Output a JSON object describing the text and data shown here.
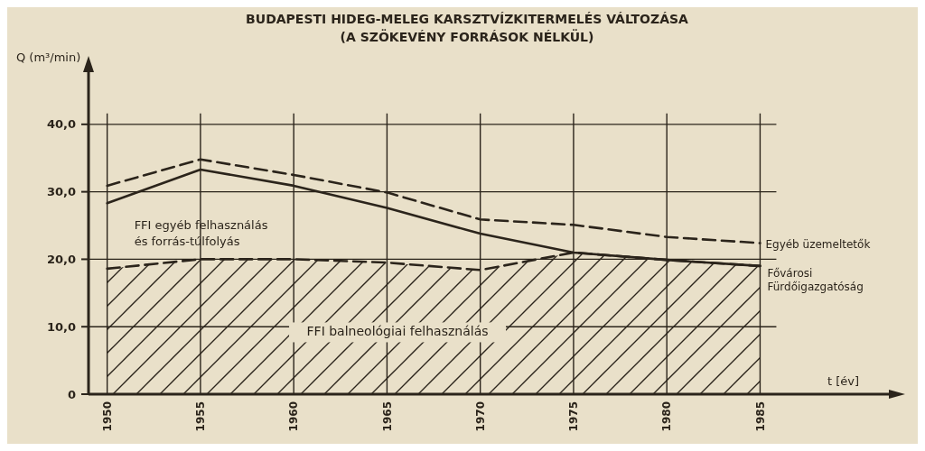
{
  "chart_data": {
    "type": "line",
    "title": "BUDAPESTI HIDEG-MELEG KARSZTVÍZKITERMELÉS VÁLTOZÁSA",
    "subtitle": "(A SZÖKEVÉNY FORRÁSOK NÉLKÜL)",
    "ylabel": "Q (m³/min)",
    "xlabel": "t [év]",
    "x": [
      1950,
      1955,
      1960,
      1965,
      1970,
      1975,
      1980,
      1985
    ],
    "xlim": [
      1949,
      1992
    ],
    "xticks": [
      1950,
      1955,
      1960,
      1965,
      1970,
      1975,
      1980,
      1985
    ],
    "ylim": [
      0,
      48
    ],
    "yticks": [
      {
        "value": 0,
        "label": "0"
      },
      {
        "value": 10,
        "label": "10,0"
      },
      {
        "value": 20,
        "label": "20,0"
      },
      {
        "value": 30,
        "label": "30,0"
      },
      {
        "value": 40,
        "label": "40,0"
      }
    ],
    "grid": true,
    "legend": false,
    "marker": "none",
    "series": [
      {
        "name": "FFI balneológiai felhasználás",
        "type": "area",
        "color": "#2b241b",
        "line_style": "dashed",
        "values": [
          18.6,
          20.0,
          20.0,
          19.5,
          18.4,
          21.0,
          19.9,
          19.0
        ]
      },
      {
        "name": "Fővárosi Fürdőigazgatóság",
        "color": "#2b241b",
        "line_style": "solid",
        "values": [
          28.3,
          33.3,
          30.9,
          27.6,
          23.8,
          21.0,
          19.9,
          19.0
        ]
      },
      {
        "name": "Egyéb üzemeltetők",
        "color": "#2b241b",
        "line_style": "dashed",
        "values": [
          30.9,
          34.8,
          32.5,
          29.9,
          25.9,
          25.1,
          23.3,
          22.4
        ]
      }
    ],
    "annotations": [
      "FFI egyéb felhasználás\nés forrás-túlfolyás"
    ]
  }
}
